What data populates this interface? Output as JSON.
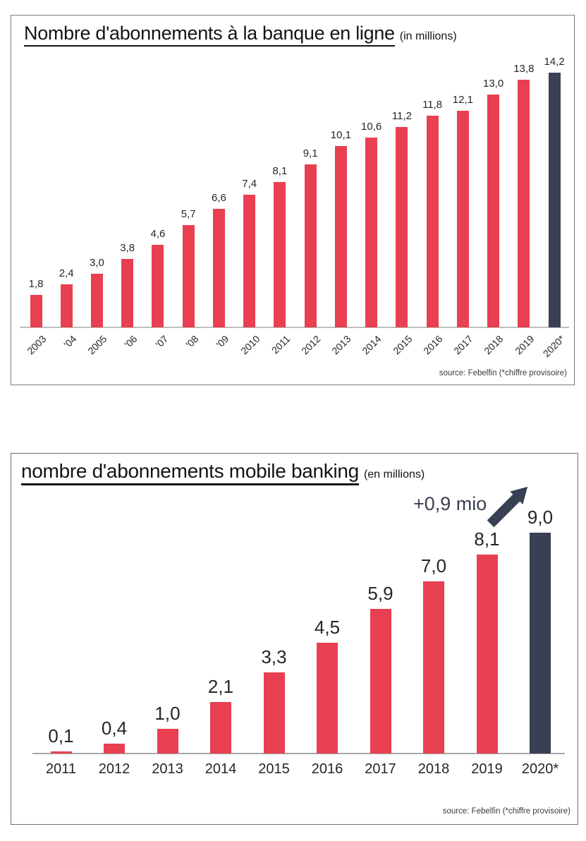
{
  "colors": {
    "bar_red": "#e84050",
    "bar_dark": "#3a4053",
    "axis_line": "#b3b3b3",
    "label_text": "#262626",
    "annotation": "#3a4053"
  },
  "chart_data": [
    {
      "type": "bar",
      "title": "Nombre d'abonnements à la banque en ligne",
      "title_suffix": "(in millions)",
      "categories": [
        "2003",
        "'04",
        "2005",
        "'06",
        "'07",
        "'08",
        "'09",
        "2010",
        "2011",
        "2012",
        "2013",
        "2014",
        "2015",
        "2016",
        "2017",
        "2018",
        "2019",
        "2020*"
      ],
      "values": [
        1.8,
        2.4,
        3.0,
        3.8,
        4.6,
        5.7,
        6.6,
        7.4,
        8.1,
        9.1,
        10.1,
        10.6,
        11.2,
        11.8,
        12.1,
        13.0,
        13.8,
        14.2
      ],
      "value_labels": [
        "1,8",
        "2,4",
        "3,0",
        "3,8",
        "4,6",
        "5,7",
        "6,6",
        "7,4",
        "8,1",
        "9,1",
        "10,1",
        "10,6",
        "11,2",
        "11,8",
        "12,1",
        "13,0",
        "13,8",
        "14,2"
      ],
      "highlight_last_bar": true,
      "grid": "off",
      "source": "source: Febelfin (*chiffre provisoire)"
    },
    {
      "type": "bar",
      "title": "nombre d'abonnements mobile banking",
      "title_suffix": "(en millions)",
      "categories": [
        "2011",
        "2012",
        "2013",
        "2014",
        "2015",
        "2016",
        "2017",
        "2018",
        "2019",
        "2020*"
      ],
      "values": [
        0.1,
        0.4,
        1.0,
        2.1,
        3.3,
        4.5,
        5.9,
        7.0,
        8.1,
        9.0
      ],
      "value_labels": [
        "0,1",
        "0,4",
        "1,0",
        "2,1",
        "3,3",
        "4,5",
        "5,9",
        "7,0",
        "8,1",
        "9,0"
      ],
      "highlight_last_bar": true,
      "grid": "off",
      "annotation": "+0,9 mio",
      "source": "source: Febelfin (*chiffre provisoire)"
    }
  ]
}
